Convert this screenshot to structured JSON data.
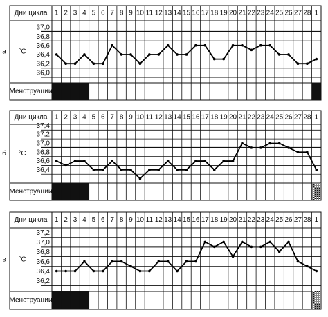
{
  "chart_data": [
    {
      "type": "line",
      "panel_label": "а",
      "xlabel": "Дни цикла",
      "ylabel": "°С",
      "row_label": "Менструации",
      "categories": [
        "1",
        "2",
        "3",
        "4",
        "5",
        "6",
        "7",
        "8",
        "9",
        "10",
        "11",
        "12",
        "13",
        "14",
        "15",
        "16",
        "17",
        "18",
        "19",
        "20",
        "21",
        "22",
        "23",
        "24",
        "25",
        "26",
        "27",
        "28",
        "1"
      ],
      "series": [
        {
          "color": "#000000",
          "values": [
            36.5,
            36.3,
            36.3,
            36.5,
            36.3,
            36.3,
            36.7,
            36.5,
            36.5,
            36.3,
            36.5,
            36.5,
            36.7,
            36.5,
            36.5,
            36.7,
            36.7,
            36.4,
            36.4,
            36.7,
            36.7,
            36.6,
            36.7,
            36.7,
            36.5,
            36.5,
            36.3,
            36.3,
            36.4
          ]
        }
      ],
      "ylim": [
        35.88,
        37.24
      ],
      "yticks": [
        {
          "value": 37.0,
          "label": "37,0"
        },
        {
          "value": 36.8,
          "label": "36,8"
        },
        {
          "value": 36.6,
          "label": "36,6"
        },
        {
          "value": 36.4,
          "label": "36,4"
        },
        {
          "value": 36.2,
          "label": "36,2"
        },
        {
          "value": 36.0,
          "label": "36,0"
        }
      ],
      "reference_line": 37.0,
      "shaded_columns": [
        0,
        1,
        2,
        3,
        28
      ],
      "hatched_columns": []
    },
    {
      "type": "line",
      "panel_label": "б",
      "xlabel": "Дни цикла",
      "ylabel": "°С",
      "row_label": "Менструации",
      "categories": [
        "1",
        "2",
        "3",
        "4",
        "5",
        "6",
        "7",
        "8",
        "9",
        "10",
        "11",
        "12",
        "13",
        "14",
        "15",
        "16",
        "17",
        "18",
        "19",
        "20",
        "21",
        "22",
        "23",
        "24",
        "25",
        "26",
        "27",
        "28",
        "1"
      ],
      "series": [
        {
          "color": "#000000",
          "values": [
            36.7,
            36.6,
            36.7,
            36.7,
            36.5,
            36.5,
            36.7,
            36.5,
            36.5,
            36.3,
            36.5,
            36.5,
            36.7,
            36.5,
            36.5,
            36.7,
            36.7,
            36.5,
            36.7,
            36.7,
            37.1,
            37.0,
            37.0,
            37.1,
            37.1,
            37.0,
            36.9,
            36.9,
            36.5
          ]
        }
      ],
      "ylim": [
        36.2,
        37.53
      ],
      "yticks": [
        {
          "value": 37.4,
          "label": "37,4"
        },
        {
          "value": 37.2,
          "label": "37,2"
        },
        {
          "value": 37.0,
          "label": "37,0"
        },
        {
          "value": 36.8,
          "label": "36,8"
        },
        {
          "value": 36.6,
          "label": "36,6"
        },
        {
          "value": 36.4,
          "label": "36,4"
        }
      ],
      "reference_line": 37.0,
      "shaded_columns": [
        0,
        1,
        2,
        3
      ],
      "hatched_columns": [
        28
      ]
    },
    {
      "type": "line",
      "panel_label": "в",
      "xlabel": "Дни цикла",
      "ylabel": "°С",
      "row_label": "Менструации",
      "categories": [
        "1",
        "2",
        "3",
        "4",
        "5",
        "6",
        "7",
        "8",
        "9",
        "10",
        "11",
        "12",
        "13",
        "14",
        "15",
        "16",
        "17",
        "18",
        "19",
        "20",
        "21",
        "22",
        "23",
        "24",
        "25",
        "26",
        "27",
        "28",
        "1"
      ],
      "series": [
        {
          "color": "#000000",
          "values": [
            36.5,
            36.5,
            36.5,
            36.7,
            36.5,
            36.5,
            36.7,
            36.7,
            36.6,
            36.5,
            36.5,
            36.7,
            36.7,
            36.5,
            36.7,
            36.7,
            37.1,
            37.0,
            37.1,
            36.8,
            37.1,
            37.0,
            37.0,
            37.1,
            36.9,
            37.1,
            36.7,
            36.6,
            36.5
          ]
        }
      ],
      "ylim": [
        36.08,
        37.39
      ],
      "yticks": [
        {
          "value": 37.2,
          "label": "37,2"
        },
        {
          "value": 37.0,
          "label": "37,0"
        },
        {
          "value": 36.8,
          "label": "36,8"
        },
        {
          "value": 36.6,
          "label": "36,6"
        },
        {
          "value": 36.4,
          "label": "36,4"
        },
        {
          "value": 36.2,
          "label": "36,2"
        }
      ],
      "reference_line": 37.0,
      "shaded_columns": [
        0,
        1,
        2,
        3
      ],
      "hatched_columns": [
        28
      ]
    }
  ]
}
